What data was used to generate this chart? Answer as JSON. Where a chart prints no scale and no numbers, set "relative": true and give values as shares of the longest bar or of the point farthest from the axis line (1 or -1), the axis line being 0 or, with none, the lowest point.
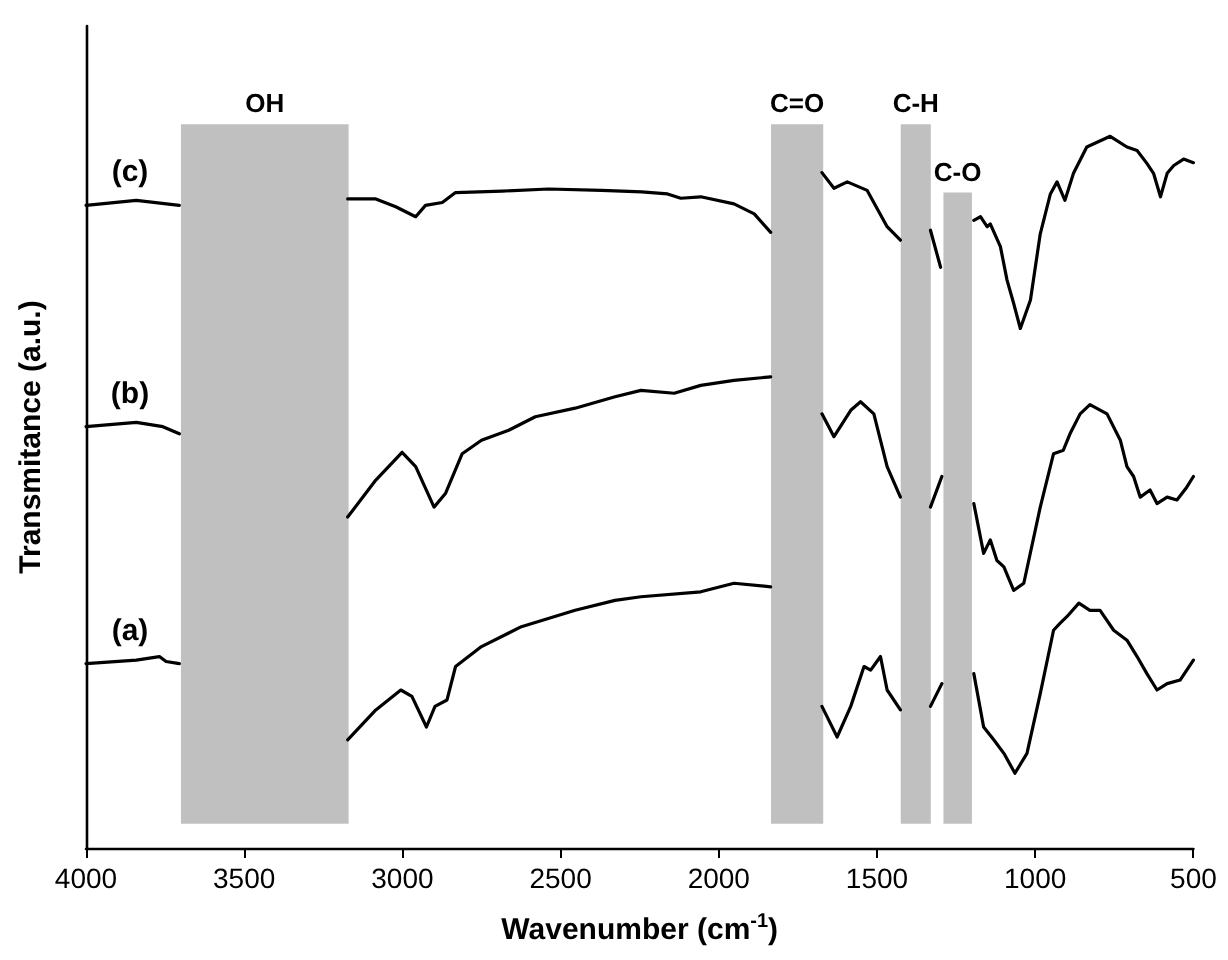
{
  "chart_data": {
    "type": "line",
    "relative": true,
    "xlabel": "Wavenumber (cm$^{-1}$)",
    "ylabel": "Transmitance (a.u.)",
    "xlim": [
      4000,
      500
    ],
    "xticks": [
      4000,
      3500,
      3000,
      2500,
      2000,
      1500,
      1000,
      500
    ],
    "grid": false,
    "legend": false,
    "marker": "none",
    "line_style": "solid",
    "bands": [
      {
        "axis": "x",
        "from": 3700,
        "to": 3170,
        "label": "OH",
        "color": "#c0c0c0"
      },
      {
        "axis": "x",
        "from": 1835,
        "to": 1670,
        "label": "C=O",
        "color": "#c0c0c0"
      },
      {
        "axis": "x",
        "from": 1425,
        "to": 1330,
        "label": "C-H",
        "color": "#c0c0c0"
      },
      {
        "axis": "x",
        "from": 1290,
        "to": 1200,
        "label": "C-O",
        "color": "#c0c0c0"
      }
    ],
    "series": [
      {
        "name": "(c)",
        "color": "#000000",
        "x": [
          4000,
          3841,
          3705,
          3450,
          3173,
          3084,
          3021,
          2958,
          2927,
          2874,
          2832,
          2685,
          2538,
          2370,
          2244,
          2162,
          2120,
          2057,
          1952,
          1888,
          1836,
          1750,
          1674,
          1636,
          1594,
          1531,
          1468,
          1426,
          1380,
          1331,
          1299,
          1245,
          1194,
          1173,
          1152,
          1142,
          1110,
          1089,
          1068,
          1047,
          1015,
          984,
          952,
          931,
          906,
          879,
          837,
          763,
          710,
          678,
          647,
          626,
          604,
          583,
          562,
          531,
          500
        ],
        "values": [
          0.903,
          0.91,
          0.903,
          null,
          0.912,
          0.912,
          0.901,
          0.887,
          0.903,
          0.907,
          0.921,
          0.923,
          0.926,
          0.924,
          0.922,
          0.919,
          0.913,
          0.915,
          0.905,
          0.891,
          0.865,
          null,
          0.949,
          0.927,
          0.936,
          0.924,
          0.873,
          0.854,
          null,
          0.868,
          0.816,
          null,
          0.882,
          0.887,
          0.873,
          0.877,
          0.845,
          0.798,
          0.765,
          0.73,
          0.77,
          0.863,
          0.919,
          0.936,
          0.91,
          0.948,
          0.985,
          1.0,
          0.985,
          0.98,
          0.962,
          0.948,
          0.915,
          0.948,
          0.959,
          0.968,
          0.963
        ]
      },
      {
        "name": "(b)",
        "color": "#000000",
        "x": [
          4000,
          3841,
          3757,
          3705,
          3450,
          3173,
          3084,
          3001,
          2958,
          2900,
          2864,
          2811,
          2750,
          2664,
          2580,
          2454,
          2328,
          2246,
          2141,
          2057,
          1952,
          1836,
          1750,
          1674,
          1636,
          1583,
          1552,
          1510,
          1468,
          1426,
          1380,
          1331,
          1295,
          1245,
          1194,
          1163,
          1142,
          1121,
          1099,
          1068,
          1036,
          984,
          942,
          911,
          890,
          858,
          827,
          773,
          731,
          710,
          689,
          668,
          637,
          615,
          583,
          552,
          521,
          500
        ],
        "values": [
          0.592,
          0.598,
          0.592,
          0.582,
          null,
          0.465,
          0.517,
          0.556,
          0.536,
          0.479,
          0.498,
          0.554,
          0.573,
          0.587,
          0.606,
          0.618,
          0.634,
          0.643,
          0.639,
          0.65,
          0.657,
          0.662,
          null,
          0.61,
          0.578,
          0.615,
          0.627,
          0.61,
          0.536,
          0.493,
          null,
          0.479,
          0.522,
          null,
          0.484,
          0.414,
          0.433,
          0.404,
          0.395,
          0.362,
          0.372,
          0.479,
          0.554,
          0.559,
          0.582,
          0.61,
          0.623,
          0.61,
          0.573,
          0.536,
          0.522,
          0.493,
          0.503,
          0.484,
          0.493,
          0.489,
          0.507,
          0.522
        ]
      },
      {
        "name": "(a)",
        "color": "#000000",
        "x": [
          4000,
          3841,
          3768,
          3747,
          3705,
          3450,
          3173,
          3084,
          3005,
          2970,
          2924,
          2897,
          2859,
          2832,
          2750,
          2624,
          2454,
          2328,
          2246,
          2057,
          1952,
          1836,
          1750,
          1674,
          1626,
          1583,
          1541,
          1520,
          1489,
          1468,
          1426,
          1380,
          1331,
          1295,
          1245,
          1194,
          1163,
          1131,
          1099,
          1064,
          1026,
          984,
          942,
          921,
          900,
          862,
          827,
          795,
          752,
          710,
          678,
          647,
          615,
          583,
          542,
          500
        ],
        "values": [
          0.259,
          0.264,
          0.269,
          0.262,
          0.259,
          null,
          0.152,
          0.194,
          0.222,
          0.213,
          0.17,
          0.199,
          0.208,
          0.255,
          0.283,
          0.311,
          0.334,
          0.348,
          0.353,
          0.36,
          0.372,
          0.367,
          null,
          0.199,
          0.156,
          0.199,
          0.255,
          0.25,
          0.269,
          0.222,
          0.194,
          null,
          0.199,
          0.231,
          null,
          0.245,
          0.17,
          0.152,
          0.133,
          0.105,
          0.133,
          0.217,
          0.306,
          0.316,
          0.325,
          0.344,
          0.334,
          0.334,
          0.306,
          0.292,
          0.269,
          0.245,
          0.222,
          0.231,
          0.236,
          0.264
        ]
      }
    ]
  }
}
